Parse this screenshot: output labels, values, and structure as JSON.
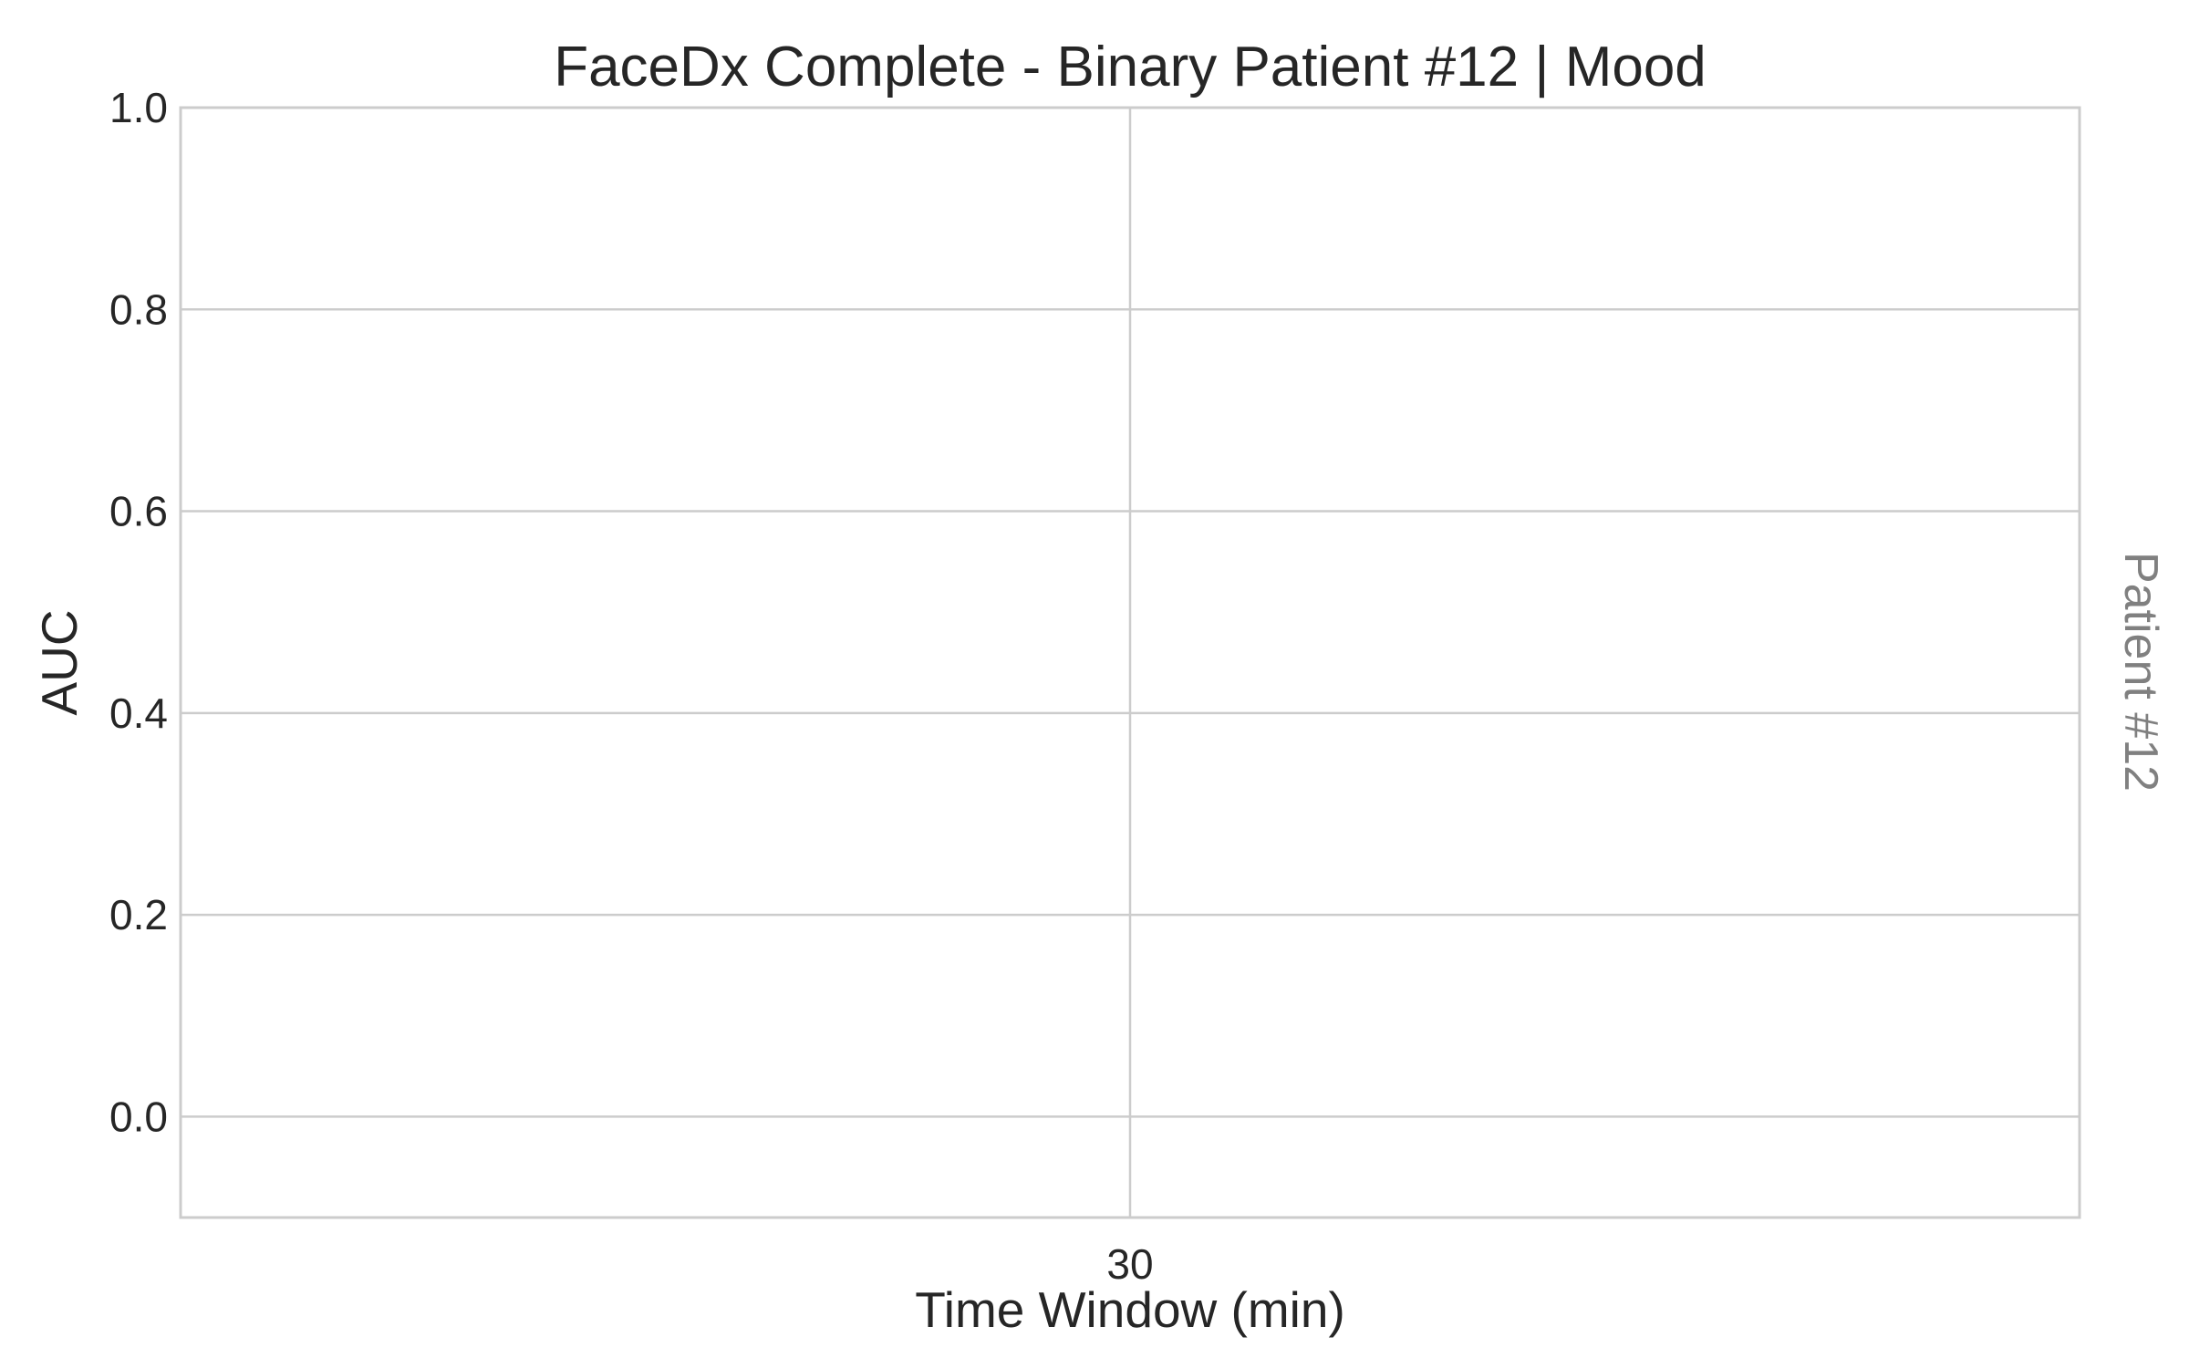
{
  "chart_data": {
    "type": "line",
    "title": "FaceDx Complete - Binary Patient #12 | Mood",
    "xlabel": "Time Window (min)",
    "ylabel": "AUC",
    "side_label": "Patient #12",
    "x_categories": [
      "30"
    ],
    "x": [],
    "series": [],
    "ylim": [
      -0.1,
      1.0
    ],
    "yticks": [
      0.0,
      0.2,
      0.4,
      0.6,
      0.8,
      1.0
    ],
    "ytick_labels": [
      "0.0",
      "0.2",
      "0.4",
      "0.6",
      "0.8",
      "1.0"
    ],
    "grid": true,
    "legend": "none"
  }
}
